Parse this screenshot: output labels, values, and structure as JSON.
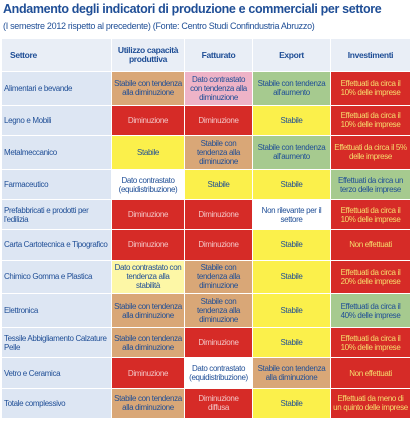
{
  "title": "Andamento degli indicatori di produzione e commerciali per settore",
  "subtitle": "(I semestre 2012 rispetto al precedente) (Fonte: Centro Studi Confindustria Abruzzo)",
  "colors": {
    "tan": "#d9a777",
    "red": "#d62b27",
    "yellow": "#fbf04b",
    "green": "#a6ca8f",
    "pink": "#eeb3c7",
    "white": "#ffffff",
    "lightyellow": "#fdf7a6",
    "invest": "#d62b27"
  },
  "columns": [
    "Settore",
    "Utilizzo capacità produttiva",
    "Fatturato",
    "Export",
    "Investimenti"
  ],
  "rows": [
    {
      "sector": "Alimentari e bevande",
      "cells": [
        {
          "text": "Stabile con tendenza alla diminuzione",
          "color": "tan"
        },
        {
          "text": "Dato contrastato con tendenza alla diminuzione",
          "color": "pink"
        },
        {
          "text": "Stabile con tendenza all'aumento",
          "color": "green"
        },
        {
          "text": "Effettuati da circa il 10% delle imprese",
          "color": "invest"
        }
      ]
    },
    {
      "sector": "Legno e Mobili",
      "cells": [
        {
          "text": "Diminuzione",
          "color": "red"
        },
        {
          "text": "Diminuzione",
          "color": "red"
        },
        {
          "text": "Stabile",
          "color": "yellow"
        },
        {
          "text": "Effettuati da circa il 10% delle imprese",
          "color": "invest"
        }
      ]
    },
    {
      "sector": "Metalmeccanico",
      "cells": [
        {
          "text": "Stabile",
          "color": "yellow"
        },
        {
          "text": "Stabile con tendenza alla diminuzione",
          "color": "tan"
        },
        {
          "text": "Stabile con tendenza all'aumento",
          "color": "green"
        },
        {
          "text": "Effettuati da circa il 5% delle imprese",
          "color": "invest"
        }
      ]
    },
    {
      "sector": "Farmaceutico",
      "cells": [
        {
          "text": "Dato contrastato (equidistribuzione)",
          "color": "white"
        },
        {
          "text": "Stabile",
          "color": "yellow"
        },
        {
          "text": "Stabile",
          "color": "yellow"
        },
        {
          "text": "Effettuati da circa un terzo delle imprese",
          "color": "green"
        }
      ]
    },
    {
      "sector": "Prefabbricati e prodotti per l'edilizia",
      "cells": [
        {
          "text": "Diminuzione",
          "color": "red"
        },
        {
          "text": "Diminuzione",
          "color": "red"
        },
        {
          "text": "Non rilevante per il settore",
          "color": "white"
        },
        {
          "text": "Effettuati da circa il 10% delle imprese",
          "color": "invest"
        }
      ]
    },
    {
      "sector": "Carta Cartotecnica e Tipografico",
      "cells": [
        {
          "text": "Diminuzione",
          "color": "red"
        },
        {
          "text": "Diminuzione",
          "color": "red"
        },
        {
          "text": "Stabile",
          "color": "yellow"
        },
        {
          "text": "Non effettuati",
          "color": "invest"
        }
      ]
    },
    {
      "sector": "Chimico Gomma e Plastica",
      "cells": [
        {
          "text": "Dato contrastato con tendenza alla stabilità",
          "color": "lightyellow"
        },
        {
          "text": "Stabile con tendenza alla diminuzione",
          "color": "tan"
        },
        {
          "text": "Stabile",
          "color": "yellow"
        },
        {
          "text": "Effettuati da circa il 20% delle imprese",
          "color": "invest"
        }
      ]
    },
    {
      "sector": "Elettronica",
      "cells": [
        {
          "text": "Stabile con tendenza alla diminuzione",
          "color": "tan"
        },
        {
          "text": "Stabile con tendenza alla diminuzione",
          "color": "tan"
        },
        {
          "text": "Stabile",
          "color": "yellow"
        },
        {
          "text": "Effettuati da circa il 40% delle imprese",
          "color": "green"
        }
      ]
    },
    {
      "sector": "Tessile Abbigliamento Calzature Pelle",
      "cells": [
        {
          "text": "Stabile con tendenza alla diminuzione",
          "color": "tan"
        },
        {
          "text": "Diminuzione",
          "color": "red"
        },
        {
          "text": "Stabile",
          "color": "yellow"
        },
        {
          "text": "Effettuati da circa il 10% delle imprese",
          "color": "invest"
        }
      ]
    },
    {
      "sector": "Vetro e Ceramica",
      "cells": [
        {
          "text": "Diminuzione",
          "color": "red"
        },
        {
          "text": "Dato contrastato (equidistribuzione)",
          "color": "white"
        },
        {
          "text": "Stabile con tendenza alla diminuzione",
          "color": "tan"
        },
        {
          "text": "Non effettuati",
          "color": "invest"
        }
      ]
    },
    {
      "sector": "Totale complessivo",
      "cells": [
        {
          "text": "Stabile con tendenza alla diminuzione",
          "color": "tan"
        },
        {
          "text": "Diminuzione diffusa",
          "color": "red"
        },
        {
          "text": "Stabile",
          "color": "yellow"
        },
        {
          "text": "Effettuati da meno di un quinto delle imprese",
          "color": "invest"
        }
      ]
    }
  ]
}
